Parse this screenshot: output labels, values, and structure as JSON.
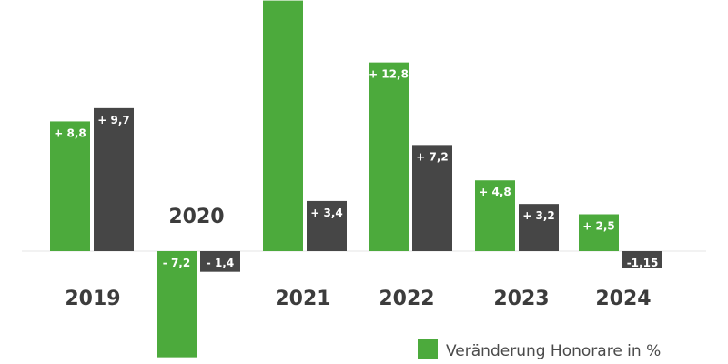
{
  "colors": {
    "green": "#4caa3c",
    "dark": "#464646",
    "baseline": "#e6e6e6",
    "background": "#ffffff"
  },
  "legend": {
    "label": "Veränderung Honorare in %"
  },
  "chart_data": {
    "type": "bar",
    "title": "",
    "xlabel": "",
    "ylabel": "",
    "categories": [
      "2019",
      "2020",
      "2021",
      "2022",
      "2023",
      "2024"
    ],
    "series": [
      {
        "name": "Veränderung Honorare in %",
        "color": "#4caa3c",
        "values": [
          8.8,
          -7.2,
          17.0,
          12.8,
          4.8,
          2.5
        ],
        "labels": [
          "+ 8,8",
          "- 7,2",
          "",
          "+ 12,8",
          "+ 4,8",
          "+ 2,5"
        ]
      },
      {
        "color": "#464646",
        "values": [
          9.7,
          -1.4,
          3.4,
          7.2,
          3.2,
          -1.15
        ],
        "labels": [
          "+ 9,7",
          "- 1,4",
          "+ 3,4",
          "+ 7,2",
          "+ 3,2",
          "-1,15"
        ]
      }
    ],
    "ylim": [
      -8.5,
      17.0
    ],
    "grid": false,
    "legend_position": "bottom-right"
  }
}
